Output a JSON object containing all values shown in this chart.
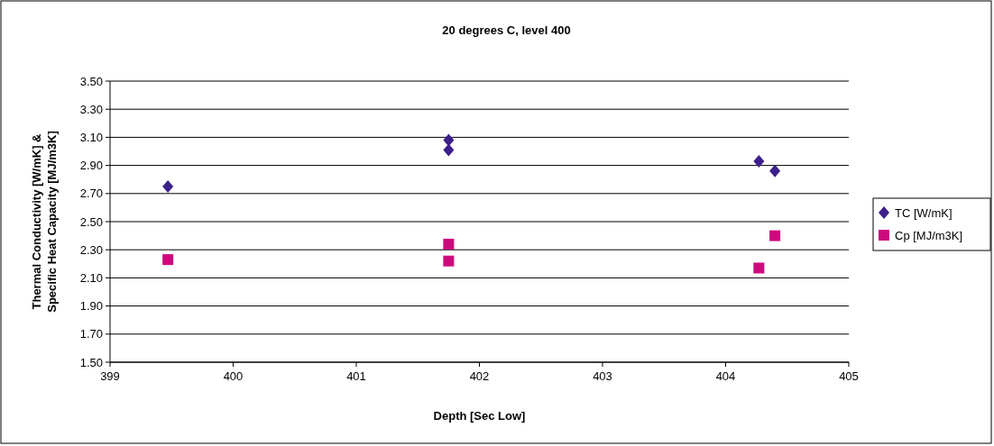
{
  "chart_data": {
    "type": "scatter",
    "title": "20 degrees C, level 400",
    "xlabel": "Depth [Sec Low]",
    "ylabel": "Thermal Conductivity [W/mK] &\nSpecific Heat Capacity [MJ/m3K]",
    "series": [
      {
        "name": "TC [W/mK]",
        "color": "#3d1f8c",
        "marker": "diamond",
        "x": [
          399.47,
          401.75,
          401.75,
          404.27,
          404.4
        ],
        "values": [
          2.75,
          3.08,
          3.01,
          2.93,
          2.86
        ]
      },
      {
        "name": "Cp [MJ/m3K]",
        "color": "#cc0a7e",
        "marker": "square",
        "x": [
          399.47,
          401.75,
          401.75,
          404.27,
          404.4
        ],
        "values": [
          2.23,
          2.34,
          2.22,
          2.17,
          2.4
        ]
      }
    ],
    "xlim": [
      399,
      405
    ],
    "xticks": [
      399,
      400,
      401,
      402,
      403,
      404,
      405
    ],
    "ylim": [
      1.5,
      3.5
    ],
    "yticks": [
      {
        "value": 1.5,
        "label": "1.50"
      },
      {
        "value": 1.7,
        "label": "1.70"
      },
      {
        "value": 1.9,
        "label": "1.90"
      },
      {
        "value": 2.1,
        "label": "2.10"
      },
      {
        "value": 2.3,
        "label": "2.30"
      },
      {
        "value": 2.5,
        "label": "2.50"
      },
      {
        "value": 2.7,
        "label": "2.70"
      },
      {
        "value": 2.9,
        "label": "2.90"
      },
      {
        "value": 3.1,
        "label": "3.10"
      },
      {
        "value": 3.3,
        "label": "3.30"
      },
      {
        "value": 3.5,
        "label": "3.50"
      }
    ],
    "grid": "y",
    "legend": "right"
  }
}
